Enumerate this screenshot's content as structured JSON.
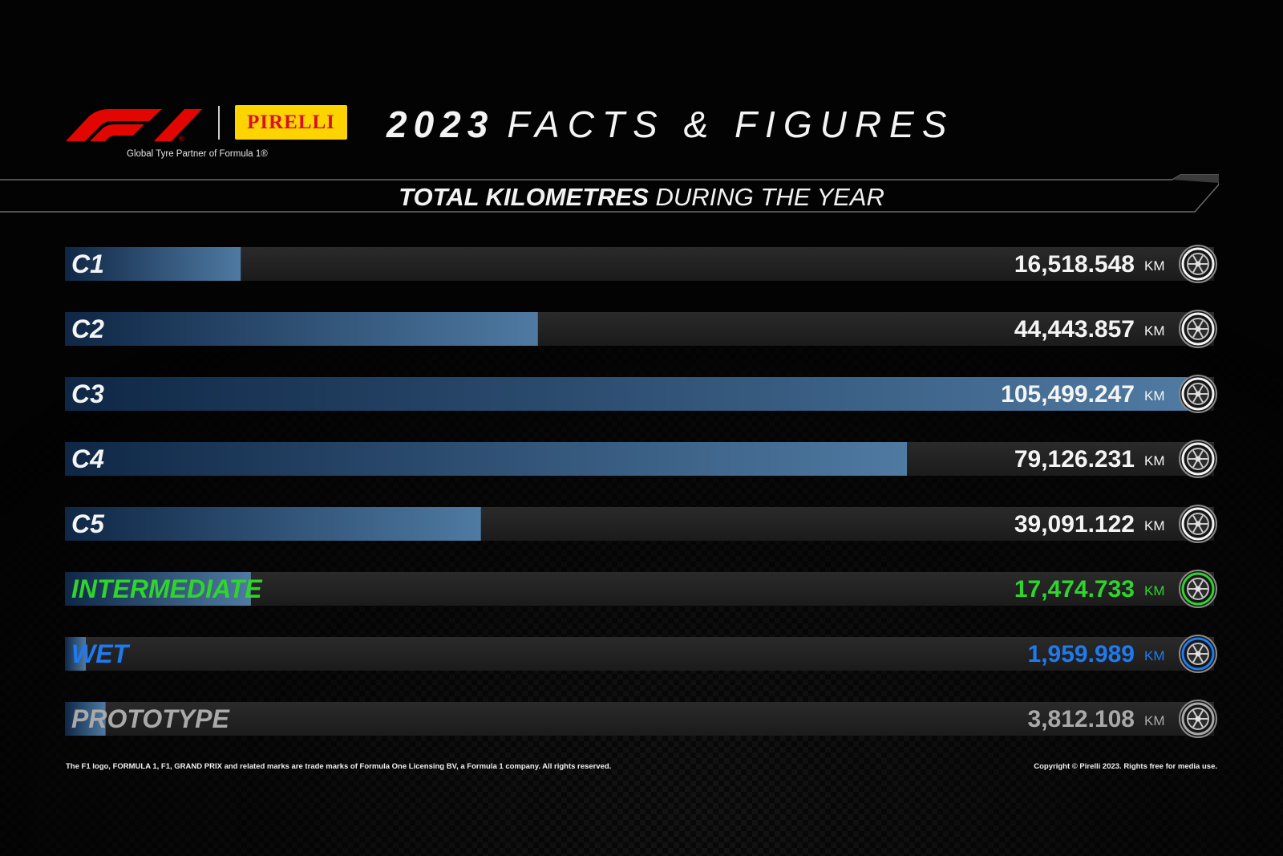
{
  "header": {
    "brand_f1": "F1",
    "brand_pirelli": "PIRELLI",
    "partner_text": "Global Tyre Partner of Formula 1®",
    "title_year": "2023",
    "title_rest": "FACTS & FIGURES"
  },
  "subtitle": {
    "strong": "TOTAL KILOMETRES",
    "rest": "DURING THE YEAR"
  },
  "colors": {
    "background": "#030303",
    "track": "#202020",
    "bar_dark": "#0f2746",
    "bar_light": "#4f7aa2",
    "intermediate": "#2fd42c",
    "wet": "#1f7af0",
    "prototype": "#a9a9a9",
    "text": "#f4f4f4"
  },
  "chart_data": {
    "type": "bar",
    "orientation": "horizontal",
    "unit": "KM",
    "categories": [
      "C1",
      "C2",
      "C3",
      "C4",
      "C5",
      "INTERMEDIATE",
      "WET",
      "PROTOTYPE"
    ],
    "values": [
      16518.548,
      44443.857,
      105499.247,
      79126.231,
      39091.122,
      17474.733,
      1959.989,
      3812.108
    ],
    "labels": [
      "16,518.548",
      "44,443.857",
      "105,499.247",
      "79,126.231",
      "39,091.122",
      "17,474.733",
      "1,959.989",
      "3,812.108"
    ],
    "label_colors": [
      "#f4f4f4",
      "#f4f4f4",
      "#f4f4f4",
      "#f4f4f4",
      "#f4f4f4",
      "#2fd42c",
      "#1f7af0",
      "#a9a9a9"
    ],
    "icon": "tyre-icon",
    "xlim": [
      0,
      105499.247
    ]
  },
  "footer": {
    "left": "The F1 logo, FORMULA 1, F1, GRAND PRIX and related marks are trade marks of Formula One Licensing BV, a Formula 1 company. All rights reserved.",
    "right": "Copyright © Pirelli 2023. Rights free for media use."
  }
}
